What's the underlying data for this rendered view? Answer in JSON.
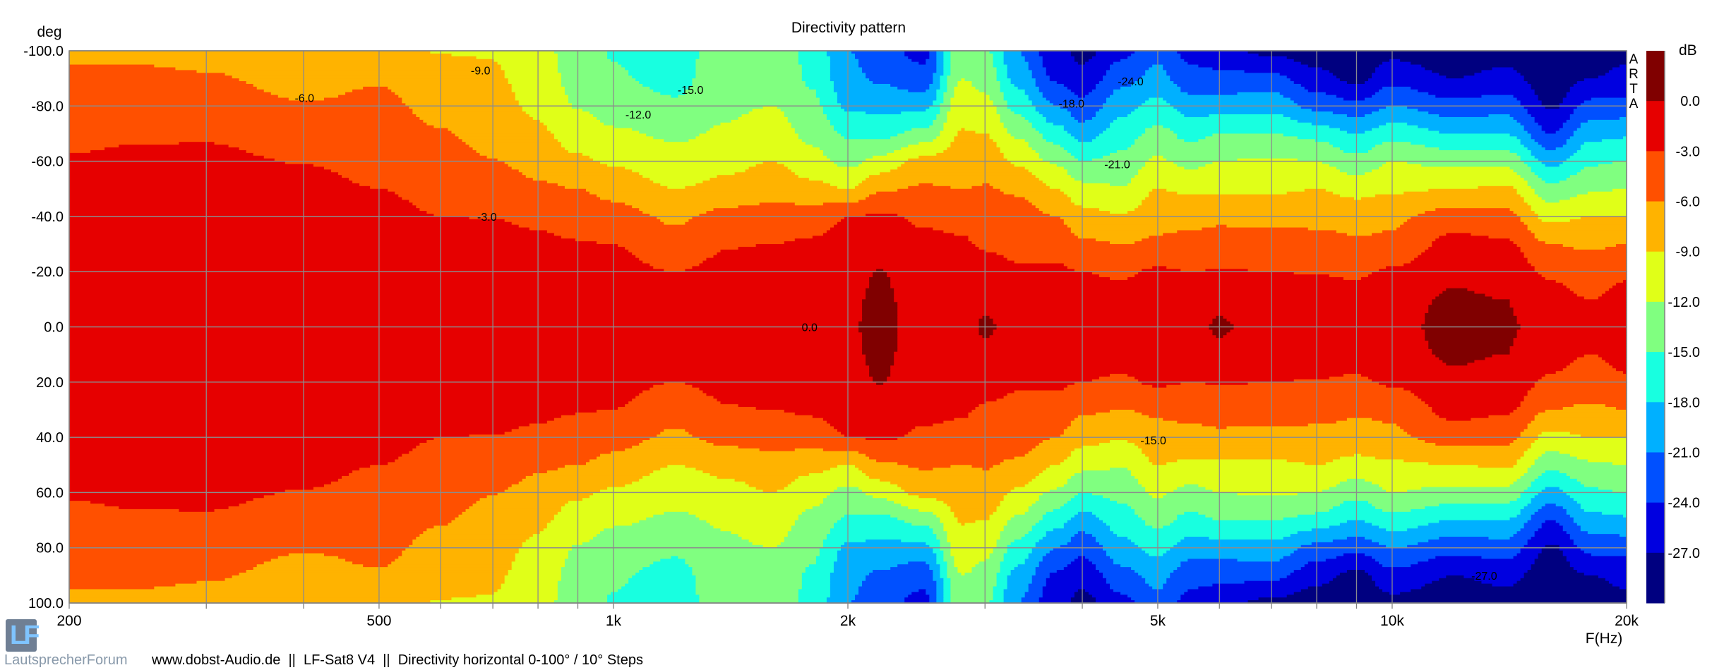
{
  "chart_data": {
    "type": "heatmap",
    "title": "Directivity pattern",
    "ylabel": "deg",
    "xlabel": "F(Hz)",
    "colorbar_label": "dB",
    "watermark": "ARTA",
    "x_scale": "log",
    "xlim": [
      200,
      20000
    ],
    "ylim": [
      -100,
      100
    ],
    "y_inverted": true,
    "grid": true,
    "x_ticks": [
      200,
      500,
      1000,
      2000,
      5000,
      10000,
      20000
    ],
    "x_tick_labels": [
      "200",
      "500",
      "1k",
      "2k",
      "5k",
      "10k",
      "20k"
    ],
    "x_minor_gridlines": [
      300,
      400,
      600,
      700,
      800,
      900,
      3000,
      4000,
      6000,
      7000,
      8000,
      9000
    ],
    "y_ticks": [
      -100,
      -80,
      -60,
      -40,
      -20,
      0,
      20,
      40,
      60,
      80,
      100
    ],
    "y_tick_labels": [
      "-100.0",
      "-80.0",
      "-60.0",
      "-40.0",
      "-20.0",
      "0.0",
      "20.0",
      "40.0",
      "60.0",
      "80.0",
      "100.0"
    ],
    "symmetric_about_zero": true,
    "angles": [
      0,
      10,
      20,
      30,
      40,
      50,
      60,
      70,
      80,
      90,
      100
    ],
    "frequencies": [
      200,
      250,
      300,
      400,
      500,
      600,
      700,
      800,
      900,
      1000,
      1200,
      1400,
      1600,
      1800,
      2000,
      2200,
      2500,
      2800,
      3000,
      3300,
      3700,
      4000,
      4500,
      5000,
      5500,
      6000,
      7000,
      8000,
      9000,
      10000,
      12000,
      14000,
      16000,
      18000,
      20000
    ],
    "values_db": [
      [
        -0.5,
        -0.6,
        -0.8,
        -1,
        -1.5,
        -2,
        -2.8,
        -3.5,
        -4.5,
        -5.5,
        -6.5
      ],
      [
        -0.5,
        -0.6,
        -0.8,
        -1,
        -1.3,
        -1.8,
        -2.5,
        -3.3,
        -4.3,
        -5.3,
        -6.8
      ],
      [
        -0.5,
        -0.6,
        -0.8,
        -1,
        -1.3,
        -1.8,
        -2.4,
        -3.3,
        -4.5,
        -5.7,
        -7
      ],
      [
        -0.5,
        -0.6,
        -0.8,
        -1.1,
        -1.5,
        -2.2,
        -3.1,
        -4.2,
        -5.8,
        -7,
        -8
      ],
      [
        -0.5,
        -0.7,
        -1,
        -1.4,
        -2.2,
        -3,
        -3.8,
        -4.6,
        -5.4,
        -6.2,
        -7
      ],
      [
        -0.6,
        -0.8,
        -1.2,
        -2,
        -3,
        -3.8,
        -4.8,
        -5.8,
        -6.8,
        -7.8,
        -9.2
      ],
      [
        -0.6,
        -0.8,
        -1.2,
        -2,
        -3.1,
        -4.4,
        -5.9,
        -7,
        -7.8,
        -8.6,
        -9.2
      ],
      [
        -0.6,
        -0.9,
        -1.5,
        -2.4,
        -3.6,
        -5.5,
        -7,
        -8.5,
        -9.6,
        -10.5,
        -11
      ],
      [
        -0.7,
        -1,
        -1.7,
        -2.8,
        -4.2,
        -6,
        -8.5,
        -10.4,
        -12.2,
        -13,
        -13.5
      ],
      [
        -0.8,
        -1.2,
        -2,
        -3,
        -4.8,
        -7,
        -9.5,
        -11.5,
        -13.5,
        -14.7,
        -15.2
      ],
      [
        -0.8,
        -1.5,
        -3,
        -5,
        -6.5,
        -9,
        -11,
        -12.5,
        -14.5,
        -16,
        -16.5
      ],
      [
        -0.7,
        -1.2,
        -2.1,
        -3.2,
        -5,
        -8,
        -10,
        -11.6,
        -12.5,
        -12.8,
        -13
      ],
      [
        -0.6,
        -1,
        -1.8,
        -3,
        -5,
        -7,
        -9,
        -10.5,
        -12,
        -12.3,
        -12.6
      ],
      [
        -0.5,
        -0.8,
        -1.6,
        -2.5,
        -4.5,
        -8,
        -11,
        -12.8,
        -14.3,
        -15.5,
        -16
      ],
      [
        -0.2,
        -0.4,
        -0.8,
        -2,
        -3,
        -9,
        -13,
        -15.5,
        -18.5,
        -20,
        -21
      ],
      [
        0.5,
        0.4,
        0.1,
        -0.8,
        -2.5,
        -6.5,
        -11,
        -16,
        -19,
        -21.5,
        -23
      ],
      [
        -0.8,
        -1,
        -1.5,
        -2.3,
        -3.5,
        -5.6,
        -8,
        -14,
        -19,
        -23,
        -25
      ],
      [
        -0.7,
        -1,
        -1.5,
        -2.5,
        -4,
        -6,
        -7.5,
        -8.8,
        -10,
        -12,
        -13
      ],
      [
        0.3,
        -0.5,
        -1.5,
        -3.5,
        -5,
        -5.8,
        -7,
        -9,
        -11,
        -13,
        -14.5
      ],
      [
        -0.8,
        -1.2,
        -2.5,
        -4,
        -4.6,
        -6.5,
        -9.5,
        -12.5,
        -16,
        -19,
        -21
      ],
      [
        -1,
        -1.5,
        -2.5,
        -4,
        -6,
        -9,
        -12.5,
        -16.5,
        -21,
        -24.5,
        -26
      ],
      [
        -1.2,
        -1.8,
        -3,
        -5.5,
        -8,
        -11,
        -15,
        -19.5,
        -23,
        -26,
        -28
      ],
      [
        -1,
        -1.8,
        -3.5,
        -6,
        -8.7,
        -11.8,
        -14,
        -16.5,
        -19,
        -22,
        -25
      ],
      [
        -0.6,
        -1,
        -2.5,
        -5.5,
        -7,
        -9,
        -11.5,
        -14,
        -17,
        -20,
        -22
      ],
      [
        -0.6,
        -1.2,
        -3,
        -5,
        -7,
        -9.5,
        -13,
        -16,
        -19.5,
        -23,
        -25
      ],
      [
        0.2,
        -0.3,
        -2.8,
        -4.5,
        -6.8,
        -9.5,
        -12,
        -15,
        -19.5,
        -23,
        -26
      ],
      [
        -0.8,
        -1.2,
        -3,
        -4.5,
        -7,
        -9.5,
        -11.5,
        -15,
        -19,
        -23,
        -28
      ],
      [
        -1,
        -1.5,
        -3.2,
        -4.8,
        -7,
        -9,
        -12,
        -16,
        -22,
        -26,
        -28.5
      ],
      [
        -1,
        -1.8,
        -3.5,
        -5.5,
        -7.2,
        -10,
        -14,
        -18,
        -23,
        -28,
        -29
      ],
      [
        -0.5,
        -1,
        -2.5,
        -5.5,
        -6.5,
        -9.5,
        -12,
        -16,
        -21,
        -25,
        -28
      ],
      [
        0.6,
        0.4,
        -0.5,
        -2,
        -4.5,
        -9,
        -13,
        -18,
        -23,
        -27,
        -29
      ],
      [
        0.3,
        0,
        -1.2,
        -2.5,
        -5,
        -8.5,
        -13,
        -18,
        -22.5,
        -26,
        -28.5
      ],
      [
        -1,
        -2,
        -3.5,
        -6,
        -10,
        -14,
        -19,
        -24,
        -27.5,
        -29,
        -30
      ],
      [
        -2,
        -3,
        -4.5,
        -6.5,
        -9,
        -12.5,
        -15.5,
        -19,
        -23,
        -27,
        -29
      ],
      [
        -1.5,
        -2,
        -3.5,
        -6,
        -9,
        -12,
        -15,
        -18.5,
        -23,
        -26,
        -28
      ]
    ],
    "levels": [
      0,
      -3,
      -6,
      -9,
      -12,
      -15,
      -18,
      -21,
      -24,
      -27
    ],
    "level_labels": [
      "0.0",
      "-3.0",
      "-6.0",
      "-9.0",
      "-12.0",
      "-15.0",
      "-18.0",
      "-21.0",
      "-24.0",
      "-27.0"
    ],
    "colors": [
      "#800000",
      "#e60000",
      "#ff5000",
      "#ffb300",
      "#e0ff18",
      "#80ff80",
      "#18ffe0",
      "#00b0ff",
      "#0050ff",
      "#0000e0",
      "#000080"
    ],
    "contour_labels": [
      {
        "text": "-9.0",
        "freq": 675,
        "angle": -93
      },
      {
        "text": "-6.0",
        "freq": 401,
        "angle": -83
      },
      {
        "text": "-15.0",
        "freq": 1256,
        "angle": -86
      },
      {
        "text": "-12.0",
        "freq": 1076,
        "angle": -77
      },
      {
        "text": "-3.0",
        "freq": 688,
        "angle": -40
      },
      {
        "text": "0.0",
        "freq": 1786,
        "angle": 0
      },
      {
        "text": "-18.0",
        "freq": 3875,
        "angle": -81
      },
      {
        "text": "-24.0",
        "freq": 4615,
        "angle": -89
      },
      {
        "text": "-21.0",
        "freq": 4435,
        "angle": -59
      },
      {
        "text": "-15.0",
        "freq": 4935,
        "angle": 41
      },
      {
        "text": "-27.0",
        "freq": 13130,
        "angle": 90
      }
    ]
  },
  "footer": {
    "logo_letters": "LF",
    "logo_name": "LautsprecherForum",
    "caption": "www.dobst-Audio.de  ||  LF-Sat8 V4  ||  Directivity horizontal 0-100° / 10° Steps"
  }
}
